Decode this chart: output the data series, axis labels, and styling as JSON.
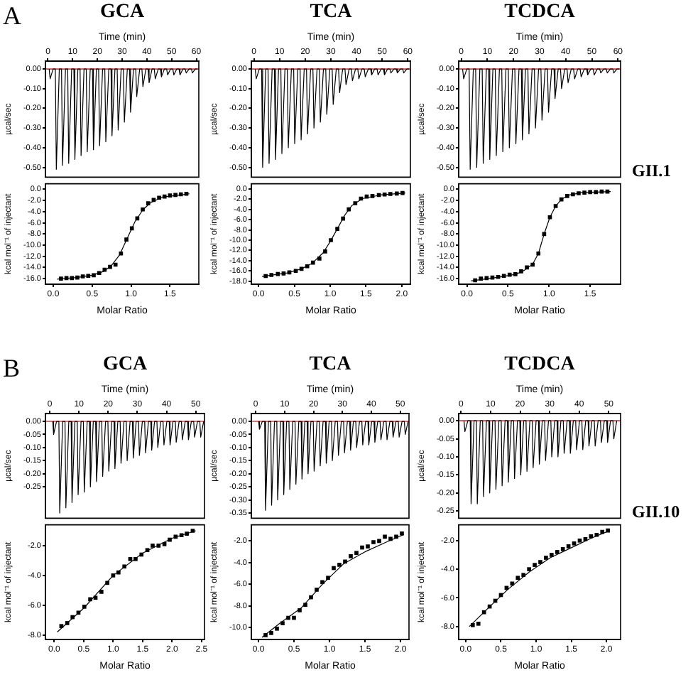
{
  "chart_data": [
    {
      "type": "line",
      "title": "GCA",
      "xlabel": "Time (min)",
      "ylabel": "µcal/sec",
      "annotations": [
        "A"
      ],
      "xlim": [
        -1,
        61
      ],
      "xticks": [
        0,
        10,
        20,
        30,
        40,
        50,
        60
      ],
      "ylim": [
        -0.55,
        0.04
      ],
      "yticks": [
        {
          "value": 0,
          "label": "0.00"
        },
        {
          "value": -0.1,
          "label": "-0.10"
        },
        {
          "value": -0.2,
          "label": "-0.20"
        },
        {
          "value": -0.3,
          "label": "-0.30"
        },
        {
          "value": -0.4,
          "label": "-0.40"
        },
        {
          "value": -0.5,
          "label": "-0.50"
        }
      ],
      "ref_lines": [
        {
          "axis": "y",
          "value": 0,
          "color": "#d04040"
        }
      ],
      "series": [
        {
          "color": "#000000",
          "x": [
            0.5,
            0.9,
            2.1,
            3,
            3.4,
            4.6,
            5.5,
            5.9,
            7.1,
            8,
            8.4,
            9.6,
            10.5,
            10.9,
            12.1,
            13,
            13.4,
            14.6,
            15.5,
            15.9,
            17.1,
            18,
            18.4,
            19.6,
            20.5,
            20.9,
            22.1,
            23,
            23.4,
            24.6,
            25.5,
            25.9,
            27.1,
            28,
            28.4,
            29.6,
            30.5,
            30.9,
            32.1,
            33,
            33.4,
            34.6,
            35.5,
            35.9,
            37.1,
            38,
            38.4,
            39.6,
            40.5,
            40.9,
            42.1,
            43,
            43.4,
            44.6,
            45.5,
            45.9,
            47.1,
            48,
            48.4,
            49.6,
            50.5,
            50.9,
            52.1,
            53,
            53.4,
            54.6,
            55.5,
            55.9,
            57.1,
            58,
            58.4,
            59.6,
            60.5
          ],
          "values": [
            0,
            -0.05,
            0,
            0,
            -0.51,
            0,
            0,
            -0.49,
            0,
            0,
            -0.48,
            0,
            0,
            -0.46,
            0,
            0,
            -0.44,
            0,
            0,
            -0.42,
            0,
            0,
            -0.41,
            0,
            0,
            -0.39,
            0,
            0,
            -0.37,
            0,
            0,
            -0.34,
            0,
            0,
            -0.31,
            0,
            0,
            -0.27,
            0,
            0,
            -0.22,
            0,
            0,
            -0.14,
            0,
            0,
            -0.09,
            0,
            0,
            -0.07,
            0,
            0,
            -0.05,
            0,
            0,
            -0.04,
            0,
            0,
            -0.03,
            0,
            0,
            -0.03,
            0,
            0,
            -0.03,
            0,
            0,
            -0.02,
            0,
            0,
            -0.02,
            0,
            0
          ]
        }
      ]
    },
    {
      "type": "line",
      "title": "TCA",
      "xlabel": "Time (min)",
      "ylabel": "µcal/sec",
      "xlim": [
        -1,
        61
      ],
      "xticks": [
        0,
        10,
        20,
        30,
        40,
        50,
        60
      ],
      "ylim": [
        -0.55,
        0.04
      ],
      "yticks": [
        {
          "value": 0,
          "label": "0.00"
        },
        {
          "value": -0.1,
          "label": "-0.10"
        },
        {
          "value": -0.2,
          "label": "-0.20"
        },
        {
          "value": -0.3,
          "label": "-0.30"
        },
        {
          "value": -0.4,
          "label": "-0.40"
        },
        {
          "value": -0.5,
          "label": "-0.50"
        }
      ],
      "ref_lines": [
        {
          "axis": "y",
          "value": 0,
          "color": "#d04040"
        }
      ],
      "series": [
        {
          "color": "#000000",
          "x": [
            0.5,
            0.9,
            2.1,
            3,
            3.4,
            4.6,
            5.5,
            5.9,
            7.1,
            8,
            8.4,
            9.6,
            10.5,
            10.9,
            12.1,
            13,
            13.4,
            14.6,
            15.5,
            15.9,
            17.1,
            18,
            18.4,
            19.6,
            20.5,
            20.9,
            22.1,
            23,
            23.4,
            24.6,
            25.5,
            25.9,
            27.1,
            28,
            28.4,
            29.6,
            30.5,
            30.9,
            32.1,
            33,
            33.4,
            34.6,
            35.5,
            35.9,
            37.1,
            38,
            38.4,
            39.6,
            40.5,
            40.9,
            42.1,
            43,
            43.4,
            44.6,
            45.5,
            45.9,
            47.1,
            48,
            48.4,
            49.6,
            50.5,
            50.9,
            52.1,
            53,
            53.4,
            54.6,
            55.5,
            55.9,
            57.1,
            58,
            58.4,
            59.6,
            60.5
          ],
          "values": [
            0,
            -0.05,
            0,
            0,
            -0.5,
            0,
            0,
            -0.48,
            0,
            0,
            -0.46,
            0,
            0,
            -0.43,
            0,
            0,
            -0.4,
            0,
            0,
            -0.38,
            0,
            0,
            -0.36,
            0,
            0,
            -0.33,
            0,
            0,
            -0.3,
            0,
            0,
            -0.27,
            0,
            0,
            -0.23,
            0,
            0,
            -0.18,
            0,
            0,
            -0.12,
            0,
            0,
            -0.08,
            0,
            0,
            -0.06,
            0,
            0,
            -0.05,
            0,
            0,
            -0.04,
            0,
            0,
            -0.03,
            0,
            0,
            -0.03,
            0,
            0,
            -0.03,
            0,
            0,
            -0.02,
            0,
            0,
            -0.02,
            0,
            0,
            -0.02,
            0,
            0
          ]
        }
      ]
    },
    {
      "type": "line",
      "title": "TCDCA",
      "xlabel": "Time (min)",
      "ylabel": "µcal/sec",
      "xlim": [
        -1,
        61
      ],
      "xticks": [
        0,
        10,
        20,
        30,
        40,
        50,
        60
      ],
      "ylim": [
        -0.55,
        0.04
      ],
      "yticks": [
        {
          "value": 0,
          "label": "0.00"
        },
        {
          "value": -0.1,
          "label": "-0.10"
        },
        {
          "value": -0.2,
          "label": "-0.20"
        },
        {
          "value": -0.3,
          "label": "-0.30"
        },
        {
          "value": -0.4,
          "label": "-0.40"
        },
        {
          "value": -0.5,
          "label": "-0.50"
        }
      ],
      "ref_lines": [
        {
          "axis": "y",
          "value": 0,
          "color": "#d04040"
        }
      ],
      "series": [
        {
          "color": "#000000",
          "x": [
            0.5,
            0.9,
            2.1,
            3,
            3.4,
            4.6,
            5.5,
            5.9,
            7.1,
            8,
            8.4,
            9.6,
            10.5,
            10.9,
            12.1,
            13,
            13.4,
            14.6,
            15.5,
            15.9,
            17.1,
            18,
            18.4,
            19.6,
            20.5,
            20.9,
            22.1,
            23,
            23.4,
            24.6,
            25.5,
            25.9,
            27.1,
            28,
            28.4,
            29.6,
            30.5,
            30.9,
            32.1,
            33,
            33.4,
            34.6,
            35.5,
            35.9,
            37.1,
            38,
            38.4,
            39.6,
            40.5,
            40.9,
            42.1,
            43,
            43.4,
            44.6,
            45.5,
            45.9,
            47.1,
            48,
            48.4,
            49.6,
            50.5,
            50.9,
            52.1,
            53,
            53.4,
            54.6,
            55.5,
            55.9,
            57.1,
            58,
            58.4,
            59.6,
            60.5
          ],
          "values": [
            0,
            -0.05,
            0,
            0,
            -0.51,
            0,
            0,
            -0.5,
            0,
            0,
            -0.48,
            0,
            0,
            -0.46,
            0,
            0,
            -0.44,
            0,
            0,
            -0.42,
            0,
            0,
            -0.4,
            0,
            0,
            -0.38,
            0,
            0,
            -0.36,
            0,
            0,
            -0.33,
            0,
            0,
            -0.3,
            0,
            0,
            -0.26,
            0,
            0,
            -0.22,
            0,
            0,
            -0.15,
            0,
            0,
            -0.1,
            0,
            0,
            -0.07,
            0,
            0,
            -0.05,
            0,
            0,
            -0.04,
            0,
            0,
            -0.03,
            0,
            0,
            -0.03,
            0,
            0,
            -0.02,
            0,
            0,
            -0.02,
            0,
            0,
            -0.02,
            0,
            0
          ]
        }
      ]
    },
    {
      "type": "scatter",
      "xlabel": "Molar Ratio",
      "ylabel": "kcal mol⁻¹ of injectant",
      "xlim": [
        -0.1,
        1.87
      ],
      "xticks": [
        {
          "value": 0,
          "label": "0.0"
        },
        {
          "value": 0.5,
          "label": "0.5"
        },
        {
          "value": 1,
          "label": "1.0"
        },
        {
          "value": 1.5,
          "label": "1.5"
        }
      ],
      "ylim": [
        -17,
        1
      ],
      "yticks": [
        {
          "value": 0,
          "label": "0.0"
        },
        {
          "value": -2,
          "label": "-2.0"
        },
        {
          "value": -4,
          "label": "-4.0"
        },
        {
          "value": -6,
          "label": "-6.0"
        },
        {
          "value": -8,
          "label": "-8.0"
        },
        {
          "value": -10,
          "label": "-10.0"
        },
        {
          "value": -12,
          "label": "-12.0"
        },
        {
          "value": -14,
          "label": "-14.0"
        },
        {
          "value": -16,
          "label": "-16.0"
        }
      ],
      "series": [
        {
          "color": "#000000",
          "x": [
            0.1,
            0.17,
            0.24,
            0.31,
            0.38,
            0.45,
            0.52,
            0.59,
            0.66,
            0.73,
            0.8,
            0.87,
            0.94,
            1.01,
            1.08,
            1.15,
            1.22,
            1.29,
            1.36,
            1.43,
            1.5,
            1.57,
            1.64,
            1.71
          ],
          "marker": "square",
          "values": [
            -16.0,
            -15.9,
            -15.9,
            -15.8,
            -15.6,
            -15.5,
            -15.4,
            -15.0,
            -14.4,
            -13.9,
            -13.5,
            -11.5,
            -9.0,
            -7.0,
            -5.2,
            -3.6,
            -2.5,
            -1.9,
            -1.5,
            -1.3,
            -1.1,
            -1.0,
            -0.9,
            -0.8
          ]
        },
        {
          "type": "line",
          "color": "#000000",
          "x": [
            0.05,
            0.3,
            0.5,
            0.65,
            0.75,
            0.85,
            0.95,
            1.05,
            1.15,
            1.25,
            1.4,
            1.75
          ],
          "values": [
            -16.1,
            -15.8,
            -15.4,
            -14.7,
            -13.6,
            -11.8,
            -8.8,
            -5.8,
            -3.7,
            -2.4,
            -1.4,
            -0.8
          ]
        }
      ]
    },
    {
      "type": "scatter",
      "xlabel": "Molar Ratio",
      "ylabel": "kcal mol⁻¹ of injectant",
      "xlim": [
        -0.1,
        2.12
      ],
      "xticks": [
        {
          "value": 0,
          "label": "0.0"
        },
        {
          "value": 0.5,
          "label": "0.5"
        },
        {
          "value": 1,
          "label": "1.0"
        },
        {
          "value": 1.5,
          "label": "1.5"
        },
        {
          "value": 2,
          "label": "2.0"
        }
      ],
      "ylim": [
        -18.6,
        1
      ],
      "yticks": [
        {
          "value": 0,
          "label": "0.0"
        },
        {
          "value": -2,
          "label": "-2.0"
        },
        {
          "value": -4,
          "label": "-4.0"
        },
        {
          "value": -6,
          "label": "-6.0"
        },
        {
          "value": -8,
          "label": "-8.0"
        },
        {
          "value": -10,
          "label": "-10.0"
        },
        {
          "value": -12,
          "label": "-12.0"
        },
        {
          "value": -14,
          "label": "-14.0"
        },
        {
          "value": -16,
          "label": "-16.0"
        },
        {
          "value": -18,
          "label": "-18.0"
        }
      ],
      "series": [
        {
          "color": "#000000",
          "x": [
            0.1,
            0.18,
            0.27,
            0.35,
            0.43,
            0.52,
            0.6,
            0.68,
            0.76,
            0.85,
            0.93,
            1.01,
            1.1,
            1.18,
            1.26,
            1.35,
            1.43,
            1.51,
            1.59,
            1.68,
            1.76,
            1.84,
            1.93,
            2.01
          ],
          "marker": "square",
          "values": [
            -17.0,
            -16.8,
            -16.6,
            -16.5,
            -16.3,
            -16.0,
            -15.6,
            -15.1,
            -14.4,
            -13.6,
            -12.2,
            -10.0,
            -7.8,
            -5.8,
            -4.0,
            -2.8,
            -1.9,
            -1.5,
            -1.4,
            -1.2,
            -1.1,
            -1.0,
            -0.9,
            -0.8
          ]
        },
        {
          "type": "line",
          "color": "#000000",
          "x": [
            0.05,
            0.4,
            0.6,
            0.75,
            0.9,
            1.0,
            1.1,
            1.2,
            1.3,
            1.45,
            1.7,
            2.05
          ],
          "values": [
            -17.1,
            -16.4,
            -15.6,
            -14.5,
            -12.5,
            -10.3,
            -7.8,
            -5.2,
            -3.3,
            -1.9,
            -1.2,
            -0.8
          ]
        }
      ]
    },
    {
      "type": "scatter",
      "xlabel": "Molar Ratio",
      "ylabel": "kcal mol⁻¹ of injectant",
      "annotations": [
        "GII.1"
      ],
      "xlim": [
        -0.1,
        1.87
      ],
      "xticks": [
        {
          "value": 0,
          "label": "0.0"
        },
        {
          "value": 0.5,
          "label": "0.5"
        },
        {
          "value": 1,
          "label": "1.0"
        },
        {
          "value": 1.5,
          "label": "1.5"
        }
      ],
      "ylim": [
        -17,
        1
      ],
      "yticks": [
        {
          "value": 0,
          "label": "0.0"
        },
        {
          "value": -2,
          "label": "-2.0"
        },
        {
          "value": -4,
          "label": "-4.0"
        },
        {
          "value": -6,
          "label": "-6.0"
        },
        {
          "value": -8,
          "label": "-8.0"
        },
        {
          "value": -10,
          "label": "-10.0"
        },
        {
          "value": -12,
          "label": "-12.0"
        },
        {
          "value": -14,
          "label": "-14.0"
        },
        {
          "value": -16,
          "label": "-16.0"
        }
      ],
      "series": [
        {
          "color": "#000000",
          "x": [
            0.1,
            0.17,
            0.24,
            0.31,
            0.38,
            0.45,
            0.52,
            0.59,
            0.66,
            0.73,
            0.8,
            0.87,
            0.94,
            1.01,
            1.08,
            1.15,
            1.22,
            1.29,
            1.36,
            1.43,
            1.5,
            1.57,
            1.64,
            1.71
          ],
          "marker": "square",
          "values": [
            -16.3,
            -16.0,
            -15.9,
            -15.8,
            -15.7,
            -15.5,
            -15.3,
            -15.2,
            -14.7,
            -14.0,
            -13.5,
            -11.5,
            -8.0,
            -5.0,
            -3.0,
            -1.8,
            -1.2,
            -0.9,
            -0.7,
            -0.6,
            -0.5,
            -0.5,
            -0.4,
            -0.4
          ]
        },
        {
          "type": "line",
          "color": "#000000",
          "x": [
            0.05,
            0.4,
            0.6,
            0.7,
            0.8,
            0.87,
            0.94,
            1.01,
            1.08,
            1.15,
            1.25,
            1.4,
            1.75
          ],
          "values": [
            -16.4,
            -15.7,
            -15.2,
            -14.5,
            -13.4,
            -11.5,
            -8.0,
            -5.0,
            -3.0,
            -1.8,
            -1.0,
            -0.6,
            -0.4
          ]
        }
      ]
    },
    {
      "type": "line",
      "title": "GCA",
      "xlabel": "Time (min)",
      "ylabel": "µcal/sec",
      "annotations": [
        "B"
      ],
      "xlim": [
        -1.5,
        53
      ],
      "xticks": [
        0,
        10,
        20,
        30,
        40,
        50
      ],
      "ylim": [
        -0.37,
        0.03
      ],
      "yticks": [
        {
          "value": 0,
          "label": "0.00"
        },
        {
          "value": -0.05,
          "label": "-0.05"
        },
        {
          "value": -0.1,
          "label": "-0.10"
        },
        {
          "value": -0.15,
          "label": "-0.15"
        },
        {
          "value": -0.2,
          "label": "-0.20"
        },
        {
          "value": -0.25,
          "label": "-0.25"
        }
      ],
      "ref_lines": [
        {
          "axis": "y",
          "value": 0,
          "color": "#d04040"
        }
      ],
      "series": [
        {
          "color": "#000000",
          "x": [
            1,
            1.3,
            2.3,
            3.1,
            3.4,
            4.4,
            5.2,
            5.5,
            6.5,
            7.3,
            7.6,
            8.6,
            9.4,
            9.7,
            10.7,
            11.5,
            11.8,
            12.8,
            13.6,
            13.9,
            14.9,
            15.7,
            16,
            17,
            17.8,
            18.1,
            19.1,
            19.9,
            20.2,
            21.2,
            22,
            22.3,
            23.3,
            24.1,
            24.4,
            25.4,
            26.2,
            26.5,
            27.5,
            28.3,
            28.6,
            29.6,
            30.4,
            30.7,
            31.7,
            32.5,
            32.8,
            33.8,
            34.6,
            34.9,
            35.9,
            36.7,
            37,
            38,
            38.8,
            39.1,
            40.1,
            40.9,
            41.2,
            42.2,
            43,
            43.3,
            44.3,
            45.1,
            45.4,
            46.4,
            47.2,
            47.5,
            48.5,
            49.3,
            49.6,
            50.6,
            51.4,
            51.7,
            52.7
          ],
          "values": [
            0,
            -0.05,
            0,
            0,
            -0.35,
            0,
            0,
            -0.33,
            0,
            0,
            -0.31,
            0,
            0,
            -0.28,
            0,
            0,
            -0.27,
            0,
            0,
            -0.25,
            0,
            0,
            -0.23,
            0,
            0,
            -0.21,
            0,
            0,
            -0.19,
            0,
            0,
            -0.18,
            0,
            0,
            -0.16,
            0,
            0,
            -0.15,
            0,
            0,
            -0.14,
            0,
            0,
            -0.13,
            0,
            0,
            -0.12,
            0,
            0,
            -0.11,
            0,
            0,
            -0.1,
            0,
            0,
            -0.09,
            0,
            0,
            -0.09,
            0,
            0,
            -0.08,
            0,
            0,
            -0.07,
            0,
            0,
            -0.07,
            0,
            0,
            -0.06,
            0,
            0,
            -0.06,
            0
          ]
        }
      ]
    },
    {
      "type": "line",
      "title": "TCA",
      "xlabel": "Time (min)",
      "ylabel": "µcal/sec",
      "xlim": [
        -1.5,
        53
      ],
      "xticks": [
        0,
        10,
        20,
        30,
        40,
        50
      ],
      "ylim": [
        -0.37,
        0.03
      ],
      "yticks": [
        {
          "value": 0,
          "label": "0.00"
        },
        {
          "value": -0.05,
          "label": "-0.05"
        },
        {
          "value": -0.1,
          "label": "-0.10"
        },
        {
          "value": -0.15,
          "label": "-0.15"
        },
        {
          "value": -0.2,
          "label": "-0.20"
        },
        {
          "value": -0.25,
          "label": "-0.25"
        },
        {
          "value": -0.3,
          "label": "-0.30"
        },
        {
          "value": -0.35,
          "label": "-0.35"
        }
      ],
      "ref_lines": [
        {
          "axis": "y",
          "value": 0,
          "color": "#d04040"
        }
      ],
      "series": [
        {
          "color": "#000000",
          "x": [
            1,
            1.3,
            2.3,
            3.1,
            3.4,
            4.4,
            5.2,
            5.5,
            6.5,
            7.3,
            7.6,
            8.6,
            9.4,
            9.7,
            10.7,
            11.5,
            11.8,
            12.8,
            13.6,
            13.9,
            14.9,
            15.7,
            16,
            17,
            17.8,
            18.1,
            19.1,
            19.9,
            20.2,
            21.2,
            22,
            22.3,
            23.3,
            24.1,
            24.4,
            25.4,
            26.2,
            26.5,
            27.5,
            28.3,
            28.6,
            29.6,
            30.4,
            30.7,
            31.7,
            32.5,
            32.8,
            33.8,
            34.6,
            34.9,
            35.9,
            36.7,
            37,
            38,
            38.8,
            39.1,
            40.1,
            40.9,
            41.2,
            42.2,
            43,
            43.3,
            44.3,
            45.1,
            45.4,
            46.4,
            47.2,
            47.5,
            48.5,
            49.3,
            49.6,
            50.6,
            51.4,
            51.7,
            52.7
          ],
          "values": [
            0,
            -0.03,
            0,
            0,
            -0.34,
            0,
            0,
            -0.32,
            0,
            0,
            -0.3,
            0,
            0,
            -0.28,
            0,
            0,
            -0.26,
            0,
            0,
            -0.24,
            0,
            0,
            -0.22,
            0,
            0,
            -0.2,
            0,
            0,
            -0.19,
            0,
            0,
            -0.17,
            0,
            0,
            -0.16,
            0,
            0,
            -0.15,
            0,
            0,
            -0.13,
            0,
            0,
            -0.12,
            0,
            0,
            -0.11,
            0,
            0,
            -0.1,
            0,
            0,
            -0.09,
            0,
            0,
            -0.09,
            0,
            0,
            -0.08,
            0,
            0,
            -0.07,
            0,
            0,
            -0.07,
            0,
            0,
            -0.06,
            0,
            0,
            -0.06,
            0,
            0,
            -0.05,
            0
          ]
        }
      ]
    },
    {
      "type": "line",
      "title": "TCDCA",
      "xlabel": "Time (min)",
      "ylabel": "µcal/sec",
      "xlim": [
        -0.8,
        54
      ],
      "xticks": [
        0,
        10,
        20,
        30,
        40,
        50
      ],
      "ylim": [
        -0.27,
        0.02
      ],
      "yticks": [
        {
          "value": 0,
          "label": "0.00"
        },
        {
          "value": -0.05,
          "label": "-0.05"
        },
        {
          "value": -0.1,
          "label": "-0.10"
        },
        {
          "value": -0.15,
          "label": "-0.15"
        },
        {
          "value": -0.2,
          "label": "-0.20"
        },
        {
          "value": -0.25,
          "label": "-0.25"
        }
      ],
      "ref_lines": [
        {
          "axis": "y",
          "value": 0,
          "color": "#d04040"
        }
      ],
      "series": [
        {
          "color": "#000000",
          "x": [
            1,
            1.3,
            2.3,
            3.1,
            3.4,
            4.4,
            5.2,
            5.5,
            6.5,
            7.3,
            7.6,
            8.6,
            9.4,
            9.7,
            10.7,
            11.5,
            11.8,
            12.8,
            13.6,
            13.9,
            14.9,
            15.7,
            16,
            17,
            17.8,
            18.1,
            19.1,
            19.9,
            20.2,
            21.2,
            22,
            22.3,
            23.3,
            24.1,
            24.4,
            25.4,
            26.2,
            26.5,
            27.5,
            28.3,
            28.6,
            29.6,
            30.4,
            30.7,
            31.7,
            32.5,
            32.8,
            33.8,
            34.6,
            34.9,
            35.9,
            36.7,
            37,
            38,
            38.8,
            39.1,
            40.1,
            40.9,
            41.2,
            42.2,
            43,
            43.3,
            44.3,
            45.1,
            45.4,
            46.4,
            47.2,
            47.5,
            48.5,
            49.3,
            49.6,
            50.6,
            51.4,
            51.7,
            52.7
          ],
          "values": [
            0,
            -0.03,
            0,
            0,
            -0.23,
            0,
            0,
            -0.23,
            0,
            0,
            -0.21,
            0,
            0,
            -0.2,
            0,
            0,
            -0.19,
            0,
            0,
            -0.18,
            0,
            0,
            -0.17,
            0,
            0,
            -0.16,
            0,
            0,
            -0.15,
            0,
            0,
            -0.14,
            0,
            0,
            -0.13,
            0,
            0,
            -0.12,
            0,
            0,
            -0.11,
            0,
            0,
            -0.1,
            0,
            0,
            -0.1,
            0,
            0,
            -0.09,
            0,
            0,
            -0.09,
            0,
            0,
            -0.08,
            0,
            0,
            -0.08,
            0,
            0,
            -0.07,
            0,
            0,
            -0.07,
            0,
            0,
            -0.06,
            0,
            0,
            -0.06,
            0,
            0,
            -0.05,
            0
          ]
        }
      ]
    },
    {
      "type": "scatter",
      "xlabel": "Molar Ratio",
      "ylabel": "kcal mol⁻¹ of injectant",
      "xlim": [
        -0.15,
        2.55
      ],
      "xticks": [
        {
          "value": 0,
          "label": "0.0"
        },
        {
          "value": 0.5,
          "label": "0.5"
        },
        {
          "value": 1,
          "label": "1.0"
        },
        {
          "value": 1.5,
          "label": "1.5"
        },
        {
          "value": 2,
          "label": "2.0"
        },
        {
          "value": 2.5,
          "label": "2.5"
        }
      ],
      "ylim": [
        -8.3,
        -0.6
      ],
      "yticks": [
        {
          "value": -2,
          "label": "-2.0"
        },
        {
          "value": -4,
          "label": "-4.0"
        },
        {
          "value": -6,
          "label": "-6.0"
        },
        {
          "value": -8,
          "label": "-8.0"
        }
      ],
      "series": [
        {
          "color": "#000000",
          "x": [
            0.12,
            0.22,
            0.31,
            0.41,
            0.51,
            0.61,
            0.7,
            0.8,
            0.9,
            1.0,
            1.09,
            1.19,
            1.29,
            1.38,
            1.48,
            1.58,
            1.67,
            1.77,
            1.87,
            1.96,
            2.06,
            2.16,
            2.25,
            2.35
          ],
          "marker": "square",
          "values": [
            -7.4,
            -7.2,
            -6.8,
            -6.5,
            -6.1,
            -5.6,
            -5.5,
            -5.1,
            -4.5,
            -4.0,
            -3.8,
            -3.4,
            -2.9,
            -2.9,
            -2.6,
            -2.3,
            -2.0,
            -2.0,
            -1.9,
            -1.6,
            -1.4,
            -1.3,
            -1.2,
            -1.0
          ]
        },
        {
          "type": "line",
          "color": "#000000",
          "x": [
            0.05,
            0.5,
            1.0,
            1.5,
            2.0,
            2.4
          ],
          "values": [
            -7.8,
            -6.2,
            -4.0,
            -2.5,
            -1.5,
            -1.0
          ]
        }
      ]
    },
    {
      "type": "scatter",
      "xlabel": "Molar Ratio",
      "ylabel": "kcal mol⁻¹ of injectant",
      "xlim": [
        -0.1,
        2.12
      ],
      "xticks": [
        {
          "value": 0,
          "label": "0.0"
        },
        {
          "value": 0.5,
          "label": "0.5"
        },
        {
          "value": 1,
          "label": "1.0"
        },
        {
          "value": 1.5,
          "label": "1.5"
        },
        {
          "value": 2,
          "label": "2.0"
        }
      ],
      "ylim": [
        -11.1,
        -0.5
      ],
      "yticks": [
        {
          "value": -2,
          "label": "-2.0"
        },
        {
          "value": -4,
          "label": "-4.0"
        },
        {
          "value": -6,
          "label": "-6.0"
        },
        {
          "value": -8,
          "label": "-8.0"
        },
        {
          "value": -10,
          "label": "-10.0"
        }
      ],
      "series": [
        {
          "color": "#000000",
          "x": [
            0.1,
            0.18,
            0.26,
            0.34,
            0.42,
            0.5,
            0.58,
            0.66,
            0.74,
            0.82,
            0.9,
            0.98,
            1.06,
            1.14,
            1.22,
            1.3,
            1.38,
            1.46,
            1.54,
            1.62,
            1.7,
            1.78,
            1.86,
            1.94,
            2.02
          ],
          "marker": "square",
          "values": [
            -10.7,
            -10.5,
            -10.1,
            -9.6,
            -9.1,
            -9.1,
            -8.4,
            -7.9,
            -7.2,
            -6.5,
            -5.8,
            -5.4,
            -4.5,
            -4.2,
            -3.9,
            -3.4,
            -3.1,
            -2.6,
            -2.5,
            -2.1,
            -2.0,
            -1.6,
            -1.8,
            -1.6,
            -1.3
          ]
        },
        {
          "type": "line",
          "color": "#000000",
          "x": [
            0.05,
            0.3,
            0.6,
            0.9,
            1.2,
            1.5,
            1.8,
            2.05
          ],
          "values": [
            -10.9,
            -9.6,
            -8.2,
            -6.0,
            -4.1,
            -3.0,
            -2.1,
            -1.4
          ]
        }
      ]
    },
    {
      "type": "scatter",
      "xlabel": "Molar Ratio",
      "ylabel": "kcal mol⁻¹ of injectant",
      "annotations": [
        "GII.10"
      ],
      "xlim": [
        -0.1,
        2.2
      ],
      "xticks": [
        {
          "value": 0,
          "label": "0.0"
        },
        {
          "value": 0.5,
          "label": "0.5"
        },
        {
          "value": 1,
          "label": "1.0"
        },
        {
          "value": 1.5,
          "label": "1.5"
        },
        {
          "value": 2,
          "label": "2.0"
        }
      ],
      "ylim": [
        -8.9,
        -0.9
      ],
      "yticks": [
        {
          "value": -2,
          "label": "-2.0"
        },
        {
          "value": -4,
          "label": "-4.0"
        },
        {
          "value": -6,
          "label": "-6.0"
        },
        {
          "value": -8,
          "label": "-8.0"
        }
      ],
      "series": [
        {
          "color": "#000000",
          "x": [
            0.1,
            0.18,
            0.26,
            0.34,
            0.42,
            0.5,
            0.58,
            0.66,
            0.74,
            0.82,
            0.9,
            0.98,
            1.06,
            1.14,
            1.22,
            1.3,
            1.38,
            1.46,
            1.54,
            1.62,
            1.7,
            1.78,
            1.86,
            1.94,
            2.02
          ],
          "marker": "square",
          "values": [
            -7.9,
            -7.8,
            -7.0,
            -6.6,
            -6.2,
            -5.8,
            -5.3,
            -5.0,
            -4.6,
            -4.4,
            -4.0,
            -3.7,
            -3.5,
            -3.2,
            -3.0,
            -2.8,
            -2.6,
            -2.4,
            -2.2,
            -2.0,
            -1.9,
            -1.7,
            -1.6,
            -1.4,
            -1.3
          ]
        },
        {
          "type": "line",
          "color": "#000000",
          "x": [
            0.05,
            0.3,
            0.6,
            0.9,
            1.2,
            1.5,
            1.8,
            2.05
          ],
          "values": [
            -8.0,
            -6.8,
            -5.4,
            -4.2,
            -3.2,
            -2.5,
            -1.8,
            -1.3
          ]
        }
      ]
    }
  ]
}
